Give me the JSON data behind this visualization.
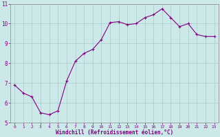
{
  "x": [
    0,
    1,
    2,
    3,
    4,
    5,
    6,
    7,
    8,
    9,
    10,
    11,
    12,
    13,
    14,
    15,
    16,
    17,
    18,
    19,
    20,
    21,
    22,
    23
  ],
  "y": [
    6.9,
    6.5,
    6.3,
    5.5,
    5.4,
    5.6,
    7.1,
    8.1,
    8.5,
    8.7,
    9.2,
    10.05,
    10.1,
    9.95,
    10.0,
    10.3,
    10.45,
    10.75,
    10.3,
    9.85,
    10.0,
    9.45,
    9.35,
    9.35
  ],
  "line_color": "#800080",
  "marker": "+",
  "marker_color": "#800080",
  "bg_color": "#cce8e8",
  "grid_color": "#aacccc",
  "xlabel": "Windchill (Refroidissement éolien,°C)",
  "xlabel_color": "#800080",
  "tick_color": "#800080",
  "ylim": [
    5,
    11
  ],
  "xlim": [
    -0.5,
    23.5
  ],
  "yticks": [
    5,
    6,
    7,
    8,
    9,
    10,
    11
  ],
  "xticks": [
    0,
    1,
    2,
    3,
    4,
    5,
    6,
    7,
    8,
    9,
    10,
    11,
    12,
    13,
    14,
    15,
    16,
    17,
    18,
    19,
    20,
    21,
    22,
    23
  ]
}
